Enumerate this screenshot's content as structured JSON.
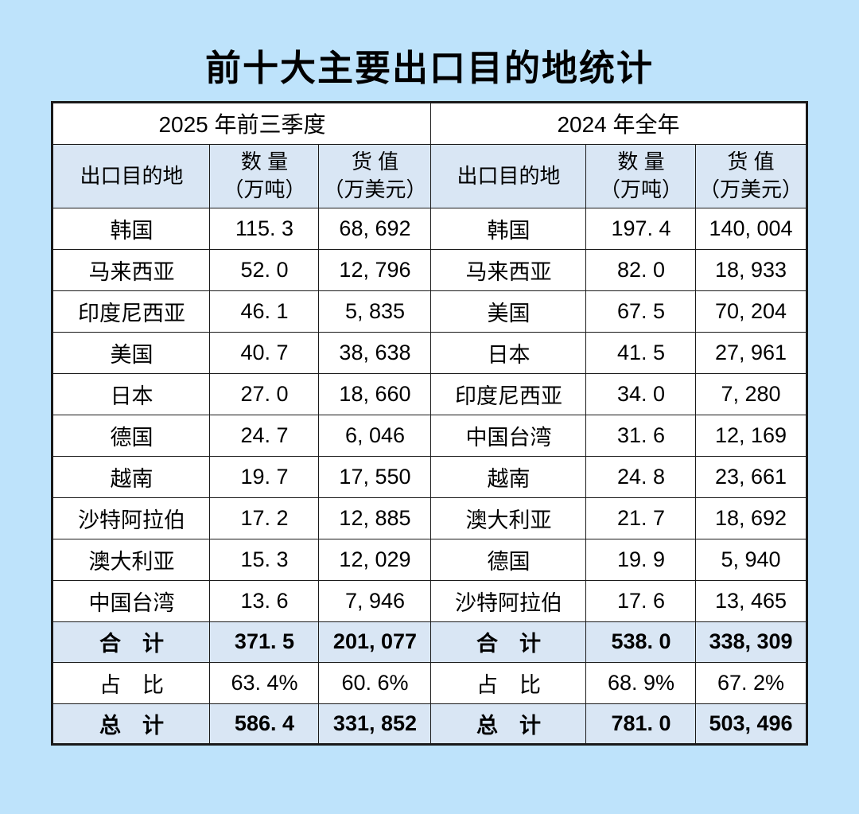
{
  "title": "前十大主要出口目的地统计",
  "columns": {
    "destination": "出口目的地",
    "quantity_title": "数 量",
    "quantity_unit": "（万吨）",
    "value_title": "货 值",
    "value_unit": "（万美元）"
  },
  "sections": [
    {
      "period": "2025 年前三季度",
      "rows": [
        {
          "destination": "韩国",
          "quantity": "115. 3",
          "value": "68, 692"
        },
        {
          "destination": "马来西亚",
          "quantity": "52. 0",
          "value": "12, 796"
        },
        {
          "destination": "印度尼西亚",
          "quantity": "46. 1",
          "value": "5, 835"
        },
        {
          "destination": "美国",
          "quantity": "40. 7",
          "value": "38, 638"
        },
        {
          "destination": "日本",
          "quantity": "27. 0",
          "value": "18, 660"
        },
        {
          "destination": "德国",
          "quantity": "24. 7",
          "value": "6, 046"
        },
        {
          "destination": "越南",
          "quantity": "19. 7",
          "value": "17, 550"
        },
        {
          "destination": "沙特阿拉伯",
          "quantity": "17. 2",
          "value": "12, 885"
        },
        {
          "destination": "澳大利亚",
          "quantity": "15. 3",
          "value": "12, 029"
        },
        {
          "destination": "中国台湾",
          "quantity": "13. 6",
          "value": "7, 946"
        }
      ],
      "subtotal": {
        "label": "合　计",
        "quantity": "371. 5",
        "value": "201, 077"
      },
      "share": {
        "label": "占　比",
        "quantity": "63. 4%",
        "value": "60. 6%"
      },
      "total": {
        "label": "总　计",
        "quantity": "586. 4",
        "value": "331, 852"
      }
    },
    {
      "period": "2024 年全年",
      "rows": [
        {
          "destination": "韩国",
          "quantity": "197. 4",
          "value": "140, 004"
        },
        {
          "destination": "马来西亚",
          "quantity": "82. 0",
          "value": "18, 933"
        },
        {
          "destination": "美国",
          "quantity": "67. 5",
          "value": "70, 204"
        },
        {
          "destination": "日本",
          "quantity": "41. 5",
          "value": "27, 961"
        },
        {
          "destination": "印度尼西亚",
          "quantity": "34. 0",
          "value": "7, 280"
        },
        {
          "destination": "中国台湾",
          "quantity": "31. 6",
          "value": "12, 169"
        },
        {
          "destination": "越南",
          "quantity": "24. 8",
          "value": "23, 661"
        },
        {
          "destination": "澳大利亚",
          "quantity": "21. 7",
          "value": "18, 692"
        },
        {
          "destination": "德国",
          "quantity": "19. 9",
          "value": "5, 940"
        },
        {
          "destination": "沙特阿拉伯",
          "quantity": "17. 6",
          "value": "13, 465"
        }
      ],
      "subtotal": {
        "label": "合　计",
        "quantity": "538. 0",
        "value": "338, 309"
      },
      "share": {
        "label": "占　比",
        "quantity": "68. 9%",
        "value": "67. 2%"
      },
      "total": {
        "label": "总　计",
        "quantity": "781. 0",
        "value": "503, 496"
      }
    }
  ],
  "colors": {
    "page_background": "#bee3fb",
    "header_fill": "#d9e6f4",
    "row_fill": "#ffffff",
    "border": "#1a1a1a",
    "text": "#000000"
  }
}
